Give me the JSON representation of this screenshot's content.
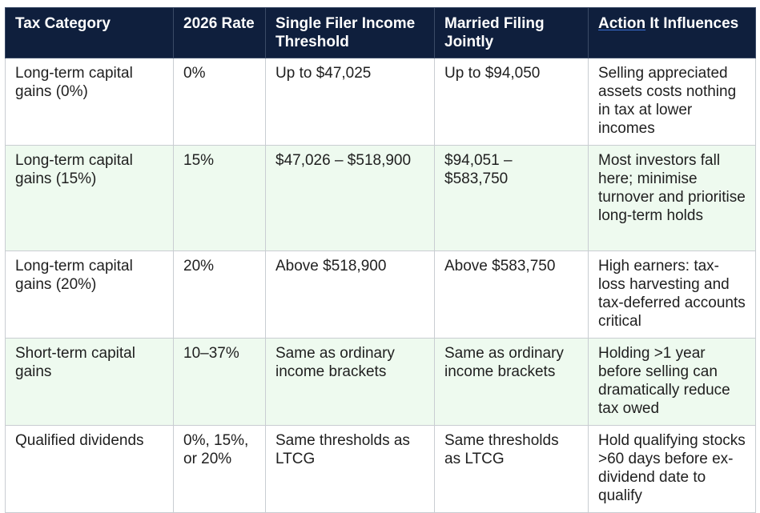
{
  "table": {
    "headers": {
      "category": "Tax Category",
      "rate": "2026 Rate",
      "single": "Single Filer Income Threshold",
      "married": "Married Filing Jointly",
      "action_first_word": "Action",
      "action_rest": " It Influences"
    },
    "rows": [
      {
        "category": "Long-term capital gains (0%)",
        "rate": "0%",
        "single": "Up to $47,025",
        "married": "Up to $94,050",
        "action": "Selling appreciated assets costs nothing in tax at lower incomes"
      },
      {
        "category": "Long-term capital gains (15%)",
        "rate": "15%",
        "single": "$47,026 – $518,900",
        "married": "$94,051 – $583,750",
        "action": "Most investors fall here; minimise turnover and prioritise long-term holds"
      },
      {
        "category": "Long-term capital gains (20%)",
        "rate": "20%",
        "single": "Above $518,900",
        "married": "Above $583,750",
        "action": "High earners: tax-loss harvesting and tax-deferred accounts critical"
      },
      {
        "category": "Short-term capital gains",
        "rate": "10–37%",
        "single": "Same as ordinary income brackets",
        "married": "Same as ordinary income brackets",
        "action": "Holding >1 year before selling can dramatically reduce tax owed"
      },
      {
        "category": "Qualified dividends",
        "rate": "0%, 15%, or 20%",
        "single": "Same thresholds as LTCG",
        "married": "Same thresholds as LTCG",
        "action": "Hold qualifying stocks >60 days before ex-dividend date to qualify"
      }
    ]
  },
  "colors": {
    "header_background": "#0f1f3d",
    "header_text": "#ffffff",
    "alt_row_background": "#eefaef",
    "border": "#c9cdd2"
  }
}
